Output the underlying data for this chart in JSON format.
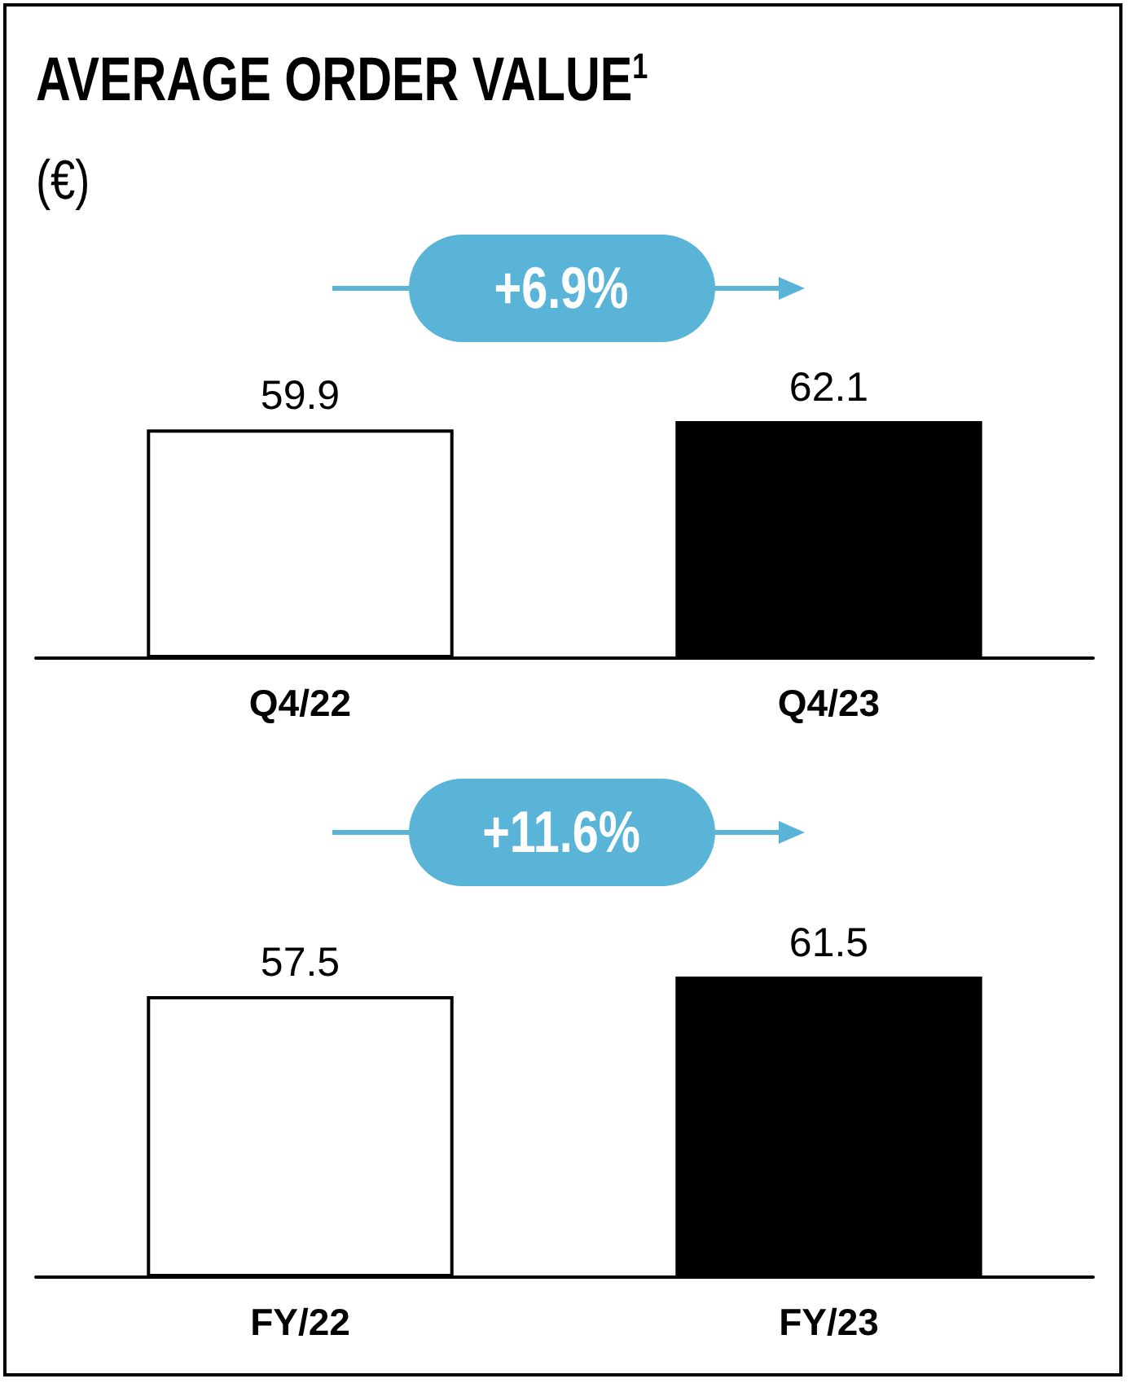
{
  "chart_data": [
    {
      "type": "bar",
      "title": "AVERAGE ORDER VALUE$^{1}$",
      "subtitle": "(€)",
      "categories": [
        "Q4/22",
        "Q4/23"
      ],
      "values": [
        59.9,
        62.1
      ],
      "colors": [
        "#ffffff",
        "#000000"
      ],
      "data_labels": true,
      "annotations": [
        "+6.9%"
      ]
    },
    {
      "type": "bar",
      "categories": [
        "FY/22",
        "FY/23"
      ],
      "values": [
        57.5,
        61.5
      ],
      "colors": [
        "#ffffff",
        "#000000"
      ],
      "data_labels": true,
      "annotations": [
        "+11.6%"
      ]
    }
  ]
}
